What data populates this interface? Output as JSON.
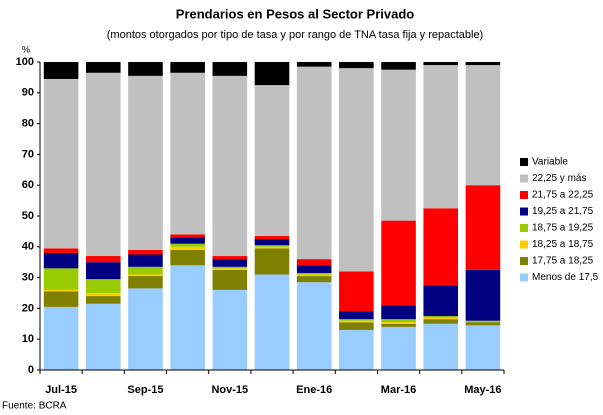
{
  "chart_data": {
    "type": "stacked_bar",
    "title": "Prendarios en Pesos al Sector Privado",
    "subtitle": "(montos otorgados por tipo de tasa y por rango de TNA tasa fija y repactable)",
    "y_label": "%",
    "source": "Fuente: BCRA",
    "categories": [
      "Jul-15",
      null,
      "Sep-15",
      null,
      "Nov-15",
      null,
      "Ene-16",
      null,
      "Mar-16",
      null,
      "May-16"
    ],
    "series": [
      {
        "name": "Menos de 17,5",
        "color": "#99ccff",
        "values": [
          20.5,
          21.5,
          26.5,
          34,
          26,
          31,
          28.5,
          13,
          14,
          15,
          14.5
        ]
      },
      {
        "name": "17,75 a 18,25",
        "color": "#808000",
        "values": [
          5,
          2.5,
          4,
          5,
          6.5,
          8.5,
          2,
          2.5,
          1,
          1.5,
          1
        ]
      },
      {
        "name": "18,25 a 18,75",
        "color": "#ffcc00",
        "values": [
          0.5,
          1,
          0.5,
          1,
          0.5,
          0.5,
          0.5,
          0.5,
          0.5,
          0.5,
          0
        ]
      },
      {
        "name": "18,75 a 19,25",
        "color": "#99cc00",
        "values": [
          7,
          4.5,
          2.5,
          1,
          0.5,
          0.5,
          0.5,
          0.5,
          1,
          0.5,
          0.5
        ]
      },
      {
        "name": "19,25 a 21,75",
        "color": "#000080",
        "values": [
          5,
          5.5,
          4,
          2,
          2.5,
          2,
          2.5,
          2.5,
          4.5,
          10,
          16.5
        ]
      },
      {
        "name": "21,75 a 22,25",
        "color": "#ff0000",
        "values": [
          1.5,
          2,
          1.5,
          1,
          1,
          1,
          2,
          13,
          27.5,
          25,
          27.5
        ]
      },
      {
        "name": "22,25 y más",
        "color": "#c0c0c0",
        "values": [
          55,
          59.5,
          56.5,
          52.5,
          58.5,
          49,
          62.5,
          66,
          49,
          46.5,
          39
        ]
      },
      {
        "name": "Variable",
        "color": "#000000",
        "values": [
          5.5,
          3.5,
          4.5,
          3.5,
          4.5,
          7.5,
          1.5,
          2,
          2.5,
          1,
          1
        ]
      }
    ],
    "ylim": [
      0,
      100
    ],
    "yticks": [
      0,
      10,
      20,
      30,
      40,
      50,
      60,
      70,
      80,
      90,
      100
    ],
    "grid": false
  }
}
